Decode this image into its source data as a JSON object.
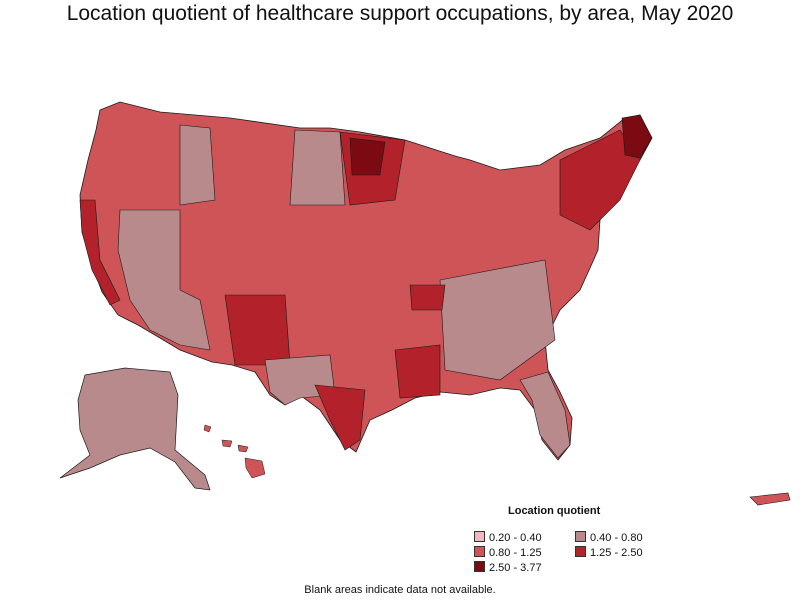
{
  "title": "Location quotient of healthcare support occupations, by area, May 2020",
  "legend": {
    "title": "Location quotient",
    "items": [
      {
        "label": "0.20 - 0.40",
        "color": "#f2b9bc"
      },
      {
        "label": "0.40 - 0.80",
        "color": "#b98a8c"
      },
      {
        "label": "0.80 - 1.25",
        "color": "#cf5458"
      },
      {
        "label": "1.25 - 2.50",
        "color": "#b3222b"
      },
      {
        "label": "2.50 - 3.77",
        "color": "#7b0a12"
      }
    ]
  },
  "footnote": "Blank areas indicate data not available.",
  "colors": {
    "border": "#1a1a1a",
    "background": "#ffffff"
  }
}
